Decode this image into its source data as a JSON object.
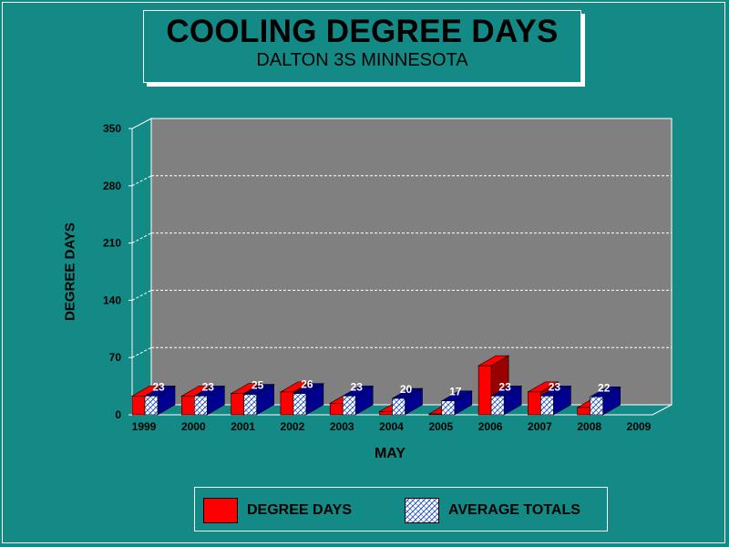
{
  "title": "COOLING DEGREE DAYS",
  "subtitle": "DALTON 3S MINNESOTA",
  "chart_data": {
    "type": "bar",
    "title": "COOLING DEGREE DAYS",
    "subtitle": "DALTON 3S MINNESOTA",
    "xlabel": "MAY",
    "ylabel": "DEGREE DAYS",
    "categories": [
      "1999",
      "2000",
      "2001",
      "2002",
      "2003",
      "2004",
      "2005",
      "2006",
      "2007",
      "2008",
      "2009"
    ],
    "series": [
      {
        "name": "DEGREE DAYS",
        "values": [
          23,
          23,
          26,
          28,
          14,
          4,
          1,
          60,
          28,
          9,
          0
        ],
        "color": "#ff0000"
      },
      {
        "name": "AVERAGE TOTALS",
        "values": [
          23,
          23,
          25,
          26,
          23,
          20,
          17,
          23,
          23,
          22,
          null
        ],
        "color": "#000090",
        "labels": [
          "23",
          "23",
          "25",
          "26",
          "23",
          "20",
          "17",
          "23",
          "23",
          "22",
          ""
        ]
      }
    ],
    "ylim": [
      0,
      350
    ],
    "yticks": [
      0,
      70,
      140,
      210,
      280,
      350
    ],
    "grid": true,
    "legend_position": "bottom"
  },
  "legend": {
    "items": [
      "DEGREE DAYS",
      "AVERAGE TOTALS"
    ]
  }
}
